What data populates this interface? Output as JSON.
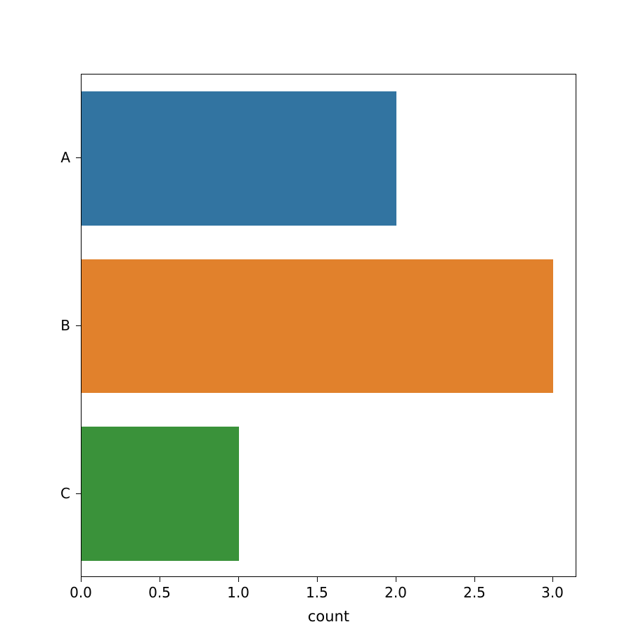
{
  "figure": {
    "background": "#ffffff"
  },
  "chart_data": {
    "type": "bar",
    "orientation": "horizontal",
    "title": "",
    "categories": [
      "A",
      "B",
      "C"
    ],
    "values": [
      2,
      3,
      1
    ],
    "bar_colors": [
      "#3274a1",
      "#e1812c",
      "#3a923a"
    ],
    "xlabel": "count",
    "ylabel": "",
    "xlim": [
      0,
      3.15
    ],
    "xticks": {
      "values": [
        0,
        0.5,
        1,
        1.5,
        2,
        2.5,
        3
      ],
      "labels": [
        "0.0",
        "0.5",
        "1.0",
        "1.5",
        "2.0",
        "2.5",
        "3.0"
      ]
    },
    "grid": false,
    "legend": null
  }
}
